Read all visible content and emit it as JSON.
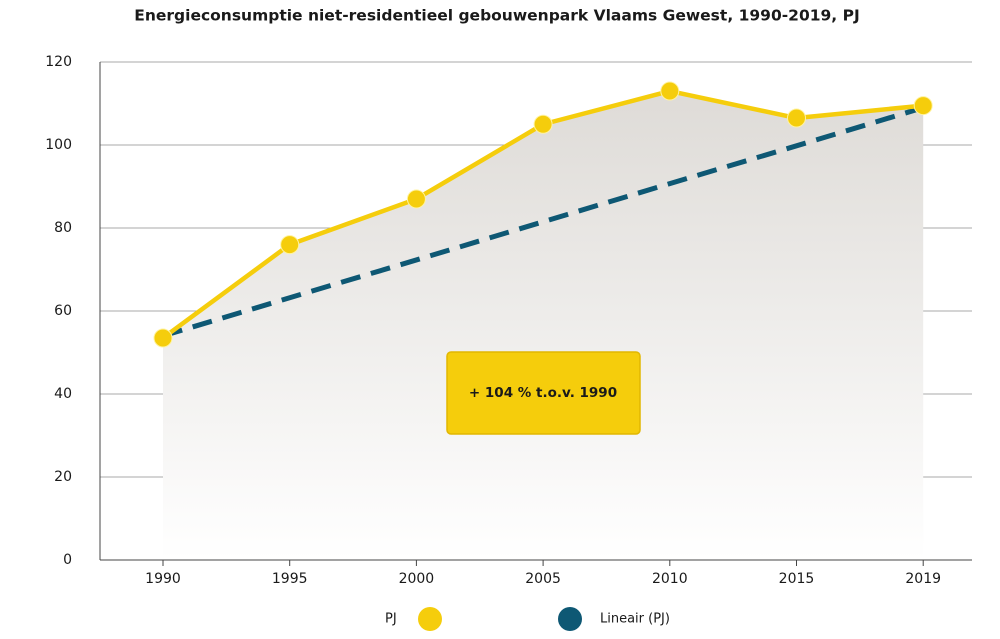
{
  "chart_data": {
    "type": "line",
    "title": "Energieconsumptie niet-residentieel gebouwenpark Vlaams Gewest, 1990-2019, PJ",
    "categories": [
      "1990",
      "1995",
      "2000",
      "2005",
      "2010",
      "2015",
      "2019"
    ],
    "series": [
      {
        "name": "PJ",
        "color": "#f5cd0c",
        "style": "solid",
        "area": true,
        "markers": true,
        "values": [
          53.5,
          76,
          87,
          105,
          113,
          106.5,
          109.5
        ]
      },
      {
        "name": "Lineair (PJ)",
        "color": "#0e5874",
        "style": "dashed",
        "area": false,
        "markers": false,
        "values": [
          54,
          63.2,
          72.3,
          81.5,
          90.7,
          99.8,
          109
        ]
      }
    ],
    "ylim": [
      0,
      120
    ],
    "yticks": [
      0,
      20,
      40,
      60,
      80,
      100,
      120
    ],
    "grid": true,
    "legend": "bottom",
    "annotation": "+ 104 % t.o.v. 1990"
  }
}
